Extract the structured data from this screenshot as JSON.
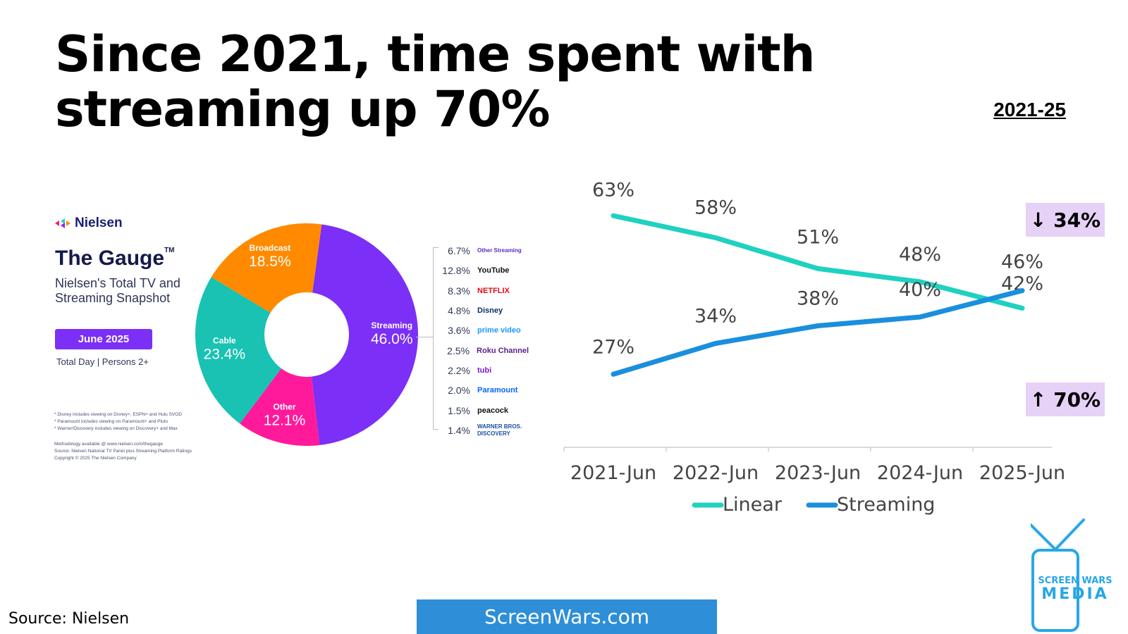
{
  "headline": "Since 2021, time spent with streaming up 70%",
  "period": "2021-25",
  "nielsen_panel": {
    "logo_text": "Nielsen",
    "title": "The Gauge",
    "trademark": "TM",
    "subtitle": "Nielsen's Total TV and Streaming Snapshot",
    "date": "June 2025",
    "daypart": "Total Day | Persons 2+",
    "footnotes": [
      "* Disney includes viewing on Disney+, ESPN+ and Hulu SVOD",
      "* Paramount includes viewing on Paramount+ and Pluto",
      "* Warner/Discovery includes viewing on Discovery+ and Max"
    ],
    "methodology": [
      "Methodology available @ www.nielsen.com/thegauge",
      "Source: Nielsen National TV Panel plus Streaming Platform Ratings",
      "Copyright © 2025 The Nielsen Company"
    ]
  },
  "chart_data": [
    {
      "type": "pie",
      "variant": "donut",
      "slices": [
        {
          "label": "Streaming",
          "value": 46.0,
          "display": "46.0%",
          "color": "#7b2ff7"
        },
        {
          "label": "Other",
          "value": 12.1,
          "display": "12.1%",
          "color": "#ff1a9c"
        },
        {
          "label": "Cable",
          "value": 23.4,
          "display": "23.4%",
          "color": "#19c2b2"
        },
        {
          "label": "Broadcast",
          "value": 18.5,
          "display": "18.5%",
          "color": "#ff8a00"
        }
      ]
    },
    {
      "type": "bar",
      "variant": "streaming-platform-breakdown",
      "categories": [
        "Other Streaming",
        "YouTube",
        "NETFLIX",
        "Disney",
        "prime video",
        "Roku Channel",
        "tubi",
        "Paramount",
        "peacock",
        "WARNER BROS. DISCOVERY"
      ],
      "values": [
        6.7,
        12.8,
        8.3,
        4.8,
        3.6,
        2.5,
        2.2,
        2.0,
        1.5,
        1.4
      ],
      "display": [
        "6.7%",
        "12.8%",
        "8.3%",
        "4.8%",
        "3.6%",
        "2.5%",
        "2.2%",
        "2.0%",
        "1.5%",
        "1.4%"
      ],
      "colors": [
        "#5b2bbf",
        "#111111",
        "#e50914",
        "#0c2d6b",
        "#1a98ff",
        "#5a1e8c",
        "#7a1ccf",
        "#0064ff",
        "#111111",
        "#1c4fa3"
      ]
    },
    {
      "type": "line",
      "categories": [
        "2021-Jun",
        "2022-Jun",
        "2023-Jun",
        "2024-Jun",
        "2025-Jun"
      ],
      "series": [
        {
          "name": "Linear",
          "values": [
            63,
            58,
            51,
            48,
            42
          ],
          "labels": [
            "63%",
            "58%",
            "51%",
            "48%",
            "42%"
          ],
          "color": "#1fd1c0"
        },
        {
          "name": "Streaming",
          "values": [
            27,
            34,
            38,
            40,
            46
          ],
          "labels": [
            "27%",
            "34%",
            "38%",
            "40%",
            "46%"
          ],
          "color": "#1a8fdd"
        }
      ],
      "ylim": [
        20,
        68
      ],
      "grid": false,
      "legend": "bottom",
      "annotations": [
        {
          "text": "↓ 34%",
          "series": "Linear",
          "color": "#e6d1f7"
        },
        {
          "text": "↑ 70%",
          "series": "Streaming",
          "color": "#e6d1f7"
        }
      ]
    }
  ],
  "source": "Source: Nielsen",
  "site": "ScreenWars.com",
  "brand_logo": {
    "line1": "SCREEN WARS",
    "line2": "MEDIA",
    "color": "#28a7e6"
  }
}
